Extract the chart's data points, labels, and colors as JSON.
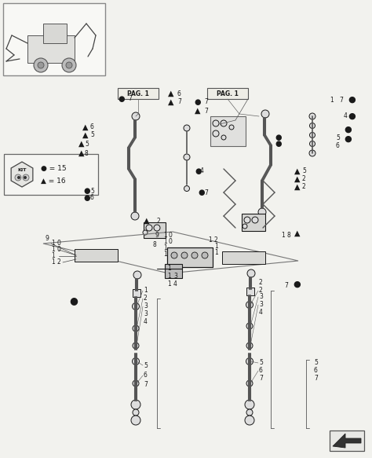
{
  "bg_color": "#f2f2ee",
  "line_color": "#1a1a1a",
  "text_color": "#111111",
  "fig_width": 4.74,
  "fig_height": 5.83,
  "dpi": 100,
  "pag1_label": "PAG. 1",
  "kit_label": "KIT",
  "arrow_sym": "▲",
  "dot_sym": "●"
}
